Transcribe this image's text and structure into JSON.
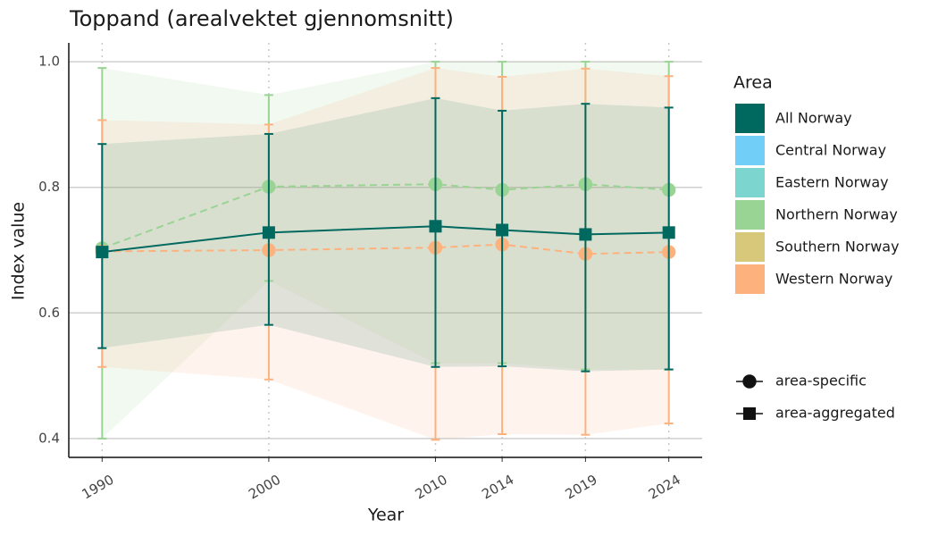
{
  "chart_data": {
    "type": "line",
    "title": "Toppand (arealvektet gjennomsnitt)",
    "x_label": "Year",
    "y_label": "Index value",
    "x": [
      1990,
      2000,
      2010,
      2014,
      2019,
      2024
    ],
    "xlim": [
      1988,
      2026
    ],
    "xticks": [
      1990,
      2000,
      2010,
      2014,
      2019,
      2024
    ],
    "ylim": [
      0.37,
      1.03
    ],
    "yticks": [
      0.4,
      0.6,
      0.8,
      {
        "value": 1.0,
        "label": "1.0"
      }
    ],
    "grid": true,
    "legend_title": "Area",
    "series": [
      {
        "name": "All Norway",
        "color": "#00695F",
        "marker": "square",
        "linestyle": "solid",
        "values": [
          0.697,
          0.728,
          0.738,
          0.732,
          0.725,
          0.728
        ],
        "lower": [
          0.544,
          0.581,
          0.514,
          0.515,
          0.507,
          0.51
        ],
        "upper": [
          0.869,
          0.885,
          0.942,
          0.922,
          0.933,
          0.927
        ]
      },
      {
        "name": "Central Norway",
        "color": "#70CEF7",
        "marker": "circle",
        "linestyle": "dashed",
        "values": [
          null,
          null,
          null,
          null,
          null,
          null
        ]
      },
      {
        "name": "Eastern Norway",
        "color": "#7CD6CF",
        "marker": "circle",
        "linestyle": "dashed",
        "values": [
          null,
          null,
          null,
          null,
          null,
          null
        ]
      },
      {
        "name": "Northern Norway",
        "color": "#9AD494",
        "marker": "circle",
        "linestyle": "dashed",
        "values": [
          0.703,
          0.801,
          0.805,
          0.796,
          0.805,
          0.796
        ],
        "lower": [
          0.4,
          0.651,
          0.52,
          0.52,
          0.51,
          0.51
        ],
        "upper": [
          0.99,
          0.947,
          1.0,
          1.0,
          1.0,
          1.0
        ]
      },
      {
        "name": "Southern Norway",
        "color": "#D8C87A",
        "marker": "circle",
        "linestyle": "dashed",
        "values": [
          null,
          null,
          null,
          null,
          null,
          null
        ]
      },
      {
        "name": "Western Norway",
        "color": "#FDB27E",
        "marker": "circle",
        "linestyle": "dashed",
        "values": [
          0.698,
          0.7,
          0.704,
          0.709,
          0.694,
          0.697
        ],
        "lower": [
          0.514,
          0.494,
          0.398,
          0.407,
          0.406,
          0.424
        ],
        "upper": [
          0.907,
          0.9,
          0.99,
          0.976,
          0.989,
          0.977
        ]
      }
    ],
    "shape_legend": [
      {
        "label": "area-specific",
        "marker": "circle"
      },
      {
        "label": "area-aggregated",
        "marker": "square"
      }
    ]
  }
}
